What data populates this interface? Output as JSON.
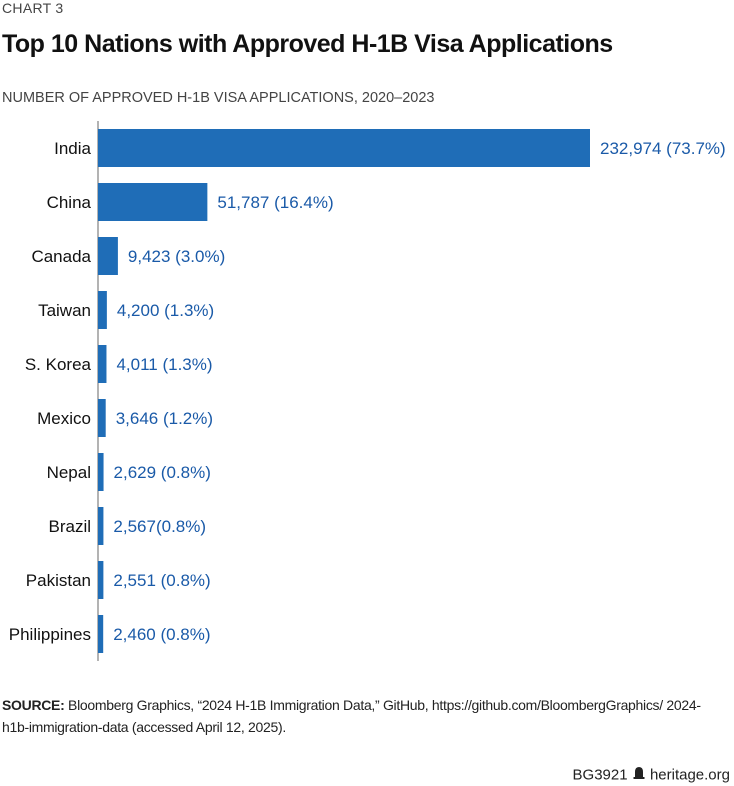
{
  "kicker": "CHART 3",
  "title": "Top 10 Nations with Approved H-1B Visa Applications",
  "subtitle": "NUMBER OF APPROVED H-1B VISA APPLICATIONS, 2020–2023",
  "colors": {
    "bar": "#1f6db7",
    "label": "#1a5aa8",
    "axis": "#9a9a9a"
  },
  "chart_data": {
    "type": "bar",
    "orientation": "horizontal",
    "title": "Top 10 Nations with Approved H-1B Visa Applications",
    "subtitle": "NUMBER OF APPROVED H-1B VISA APPLICATIONS, 2020–2023",
    "categories": [
      "India",
      "China",
      "Canada",
      "Taiwan",
      "S. Korea",
      "Mexico",
      "Nepal",
      "Brazil",
      "Pakistan",
      "Philippines"
    ],
    "values": [
      232974,
      51787,
      9423,
      4200,
      4011,
      3646,
      2629,
      2567,
      2551,
      2460
    ],
    "data_labels": [
      "232,974 (73.7%)",
      "51,787 (16.4%)",
      "9,423 (3.0%)",
      "4,200 (1.3%)",
      "4,011 (1.3%)",
      "3,646 (1.2%)",
      "2,629 (0.8%)",
      "2,567(0.8%)",
      "2,551 (0.8%)",
      "2,460 (0.8%)"
    ],
    "percents": [
      73.7,
      16.4,
      3.0,
      1.3,
      1.3,
      1.2,
      0.8,
      0.8,
      0.8,
      0.8
    ],
    "grid": false
  },
  "source": {
    "label": "SOURCE:",
    "text": " Bloomberg Graphics, “2024 H-1B Immigration Data,” GitHub, https://github.com/BloombergGraphics/ 2024-h1b-immigration-data (accessed April 12, 2025)."
  },
  "footer": {
    "code": "BG3921",
    "logo_icon": "liberty-bell-icon",
    "site": "heritage.org"
  }
}
